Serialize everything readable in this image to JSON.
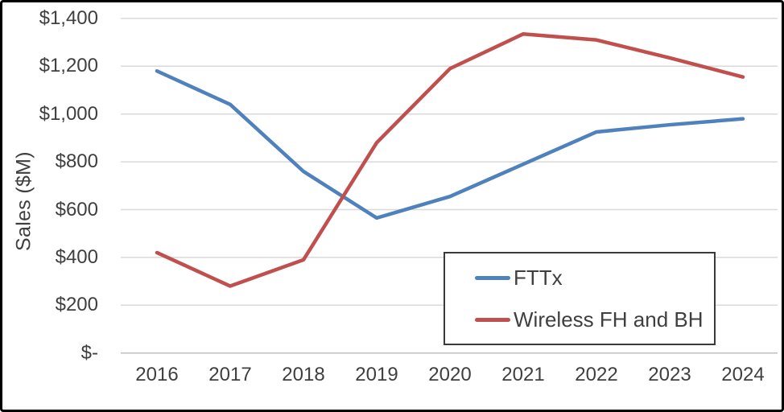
{
  "chart_data": {
    "type": "line",
    "title": "",
    "ylabel": "Sales ($M)",
    "units": "$M",
    "x": [
      "2016",
      "2017",
      "2018",
      "2019",
      "2020",
      "2021",
      "2022",
      "2023",
      "2024"
    ],
    "series": [
      {
        "name": "FTTx",
        "color": "#4F81BD",
        "values": [
          1180,
          1040,
          760,
          565,
          655,
          790,
          925,
          955,
          980
        ]
      },
      {
        "name": "Wireless FH and BH",
        "color": "#C0504D",
        "values": [
          420,
          280,
          390,
          880,
          1190,
          1335,
          1310,
          1235,
          1155
        ]
      }
    ],
    "yticks": [
      {
        "label": "$-",
        "value": 0
      },
      {
        "label": "$200",
        "value": 200
      },
      {
        "label": "$400",
        "value": 400
      },
      {
        "label": "$600",
        "value": 600
      },
      {
        "label": "$800",
        "value": 800
      },
      {
        "label": "$1,000",
        "value": 1000
      },
      {
        "label": "$1,200",
        "value": 1200
      },
      {
        "label": "$1,400",
        "value": 1400
      }
    ],
    "ylim": [
      0,
      1400
    ],
    "grid": true,
    "legend_position": "inside-right-lower",
    "colors": {
      "gridline": "#D9D9D9",
      "axis_line": "#BFBFBF",
      "text": "#3F3F3F",
      "frame_border": "#000000"
    }
  }
}
